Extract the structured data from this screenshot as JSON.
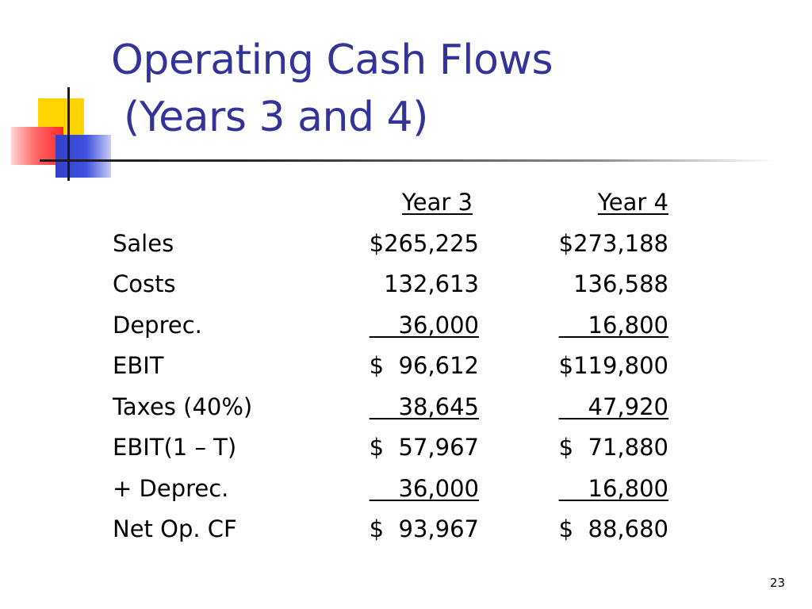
{
  "slide": {
    "title": "Operating Cash Flows\n (Years 3 and 4)",
    "page_number": "23",
    "title_color": "#333399"
  },
  "table": {
    "headers": {
      "year3": "Year 3",
      "year4": "Year 4"
    },
    "rows": [
      {
        "label": "Sales",
        "year3": "$265,225",
        "year4": "$273,188"
      },
      {
        "label": "Costs",
        "year3": "132,613",
        "year4": "136,588"
      },
      {
        "label": "Deprec.",
        "year3": "    36,000",
        "year4": "    16,800"
      },
      {
        "label": "EBIT",
        "year3": "$  96,612",
        "year4": "$119,800"
      },
      {
        "label": "Taxes (40%)",
        "year3": "    38,645",
        "year4": "    47,920"
      },
      {
        "label": "EBIT(1 – T)",
        "year3": "$  57,967",
        "year4": "$  71,880"
      },
      {
        "label": "+ Deprec.",
        "year3": "    36,000",
        "year4": "    16,800"
      },
      {
        "label": "Net Op. CF",
        "year3": "$  93,967",
        "year4": "$  88,680"
      }
    ]
  }
}
